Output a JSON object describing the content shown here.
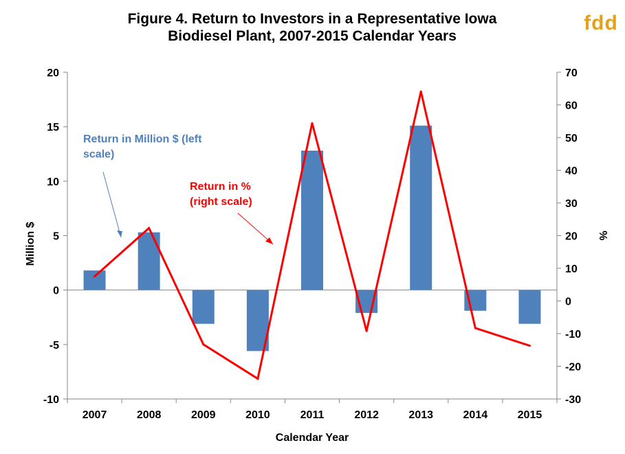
{
  "logo": {
    "text": "fdd",
    "color": "#E3A21A"
  },
  "chart_data": {
    "type": "bar",
    "title_lines": [
      "Figure 4. Return to Investors in a Representative Iowa",
      "Biodiesel Plant, 2007-2015 Calendar Years"
    ],
    "xlabel": "Calendar Year",
    "ylabel": "Million $",
    "y2label": "%",
    "categories": [
      "2007",
      "2008",
      "2009",
      "2010",
      "2011",
      "2012",
      "2013",
      "2014",
      "2015"
    ],
    "series": [
      {
        "name": "Return in Million $ (left scale)",
        "type": "bar",
        "axis": "left",
        "color": "#4F81BD",
        "values": [
          1.8,
          5.3,
          -3.1,
          -5.6,
          12.8,
          -2.1,
          15.1,
          -1.9,
          -3.1
        ]
      },
      {
        "name": "Return in % (right scale)",
        "type": "line",
        "axis": "right",
        "color": "#FF0000",
        "values": [
          7.5,
          22.3,
          -13.3,
          -23.8,
          54.4,
          -9.2,
          64.1,
          -8.3,
          -13.7
        ]
      }
    ],
    "ylim": [
      -10,
      20
    ],
    "yticks": [
      "-10",
      "-5",
      "0",
      "5",
      "10",
      "15",
      "20"
    ],
    "y2lim": [
      -30,
      70
    ],
    "y2ticks": [
      "-30",
      "-20",
      "-10",
      "0",
      "10",
      "20",
      "30",
      "40",
      "50",
      "60",
      "70"
    ],
    "grid": false,
    "annotations": [
      {
        "lines": [
          "Return in Million $ (left",
          "scale)"
        ],
        "color": "#4F81BD",
        "series": 0
      },
      {
        "lines": [
          "Return in %",
          "(right scale)"
        ],
        "color": "#FF0000",
        "series": 1
      }
    ]
  }
}
